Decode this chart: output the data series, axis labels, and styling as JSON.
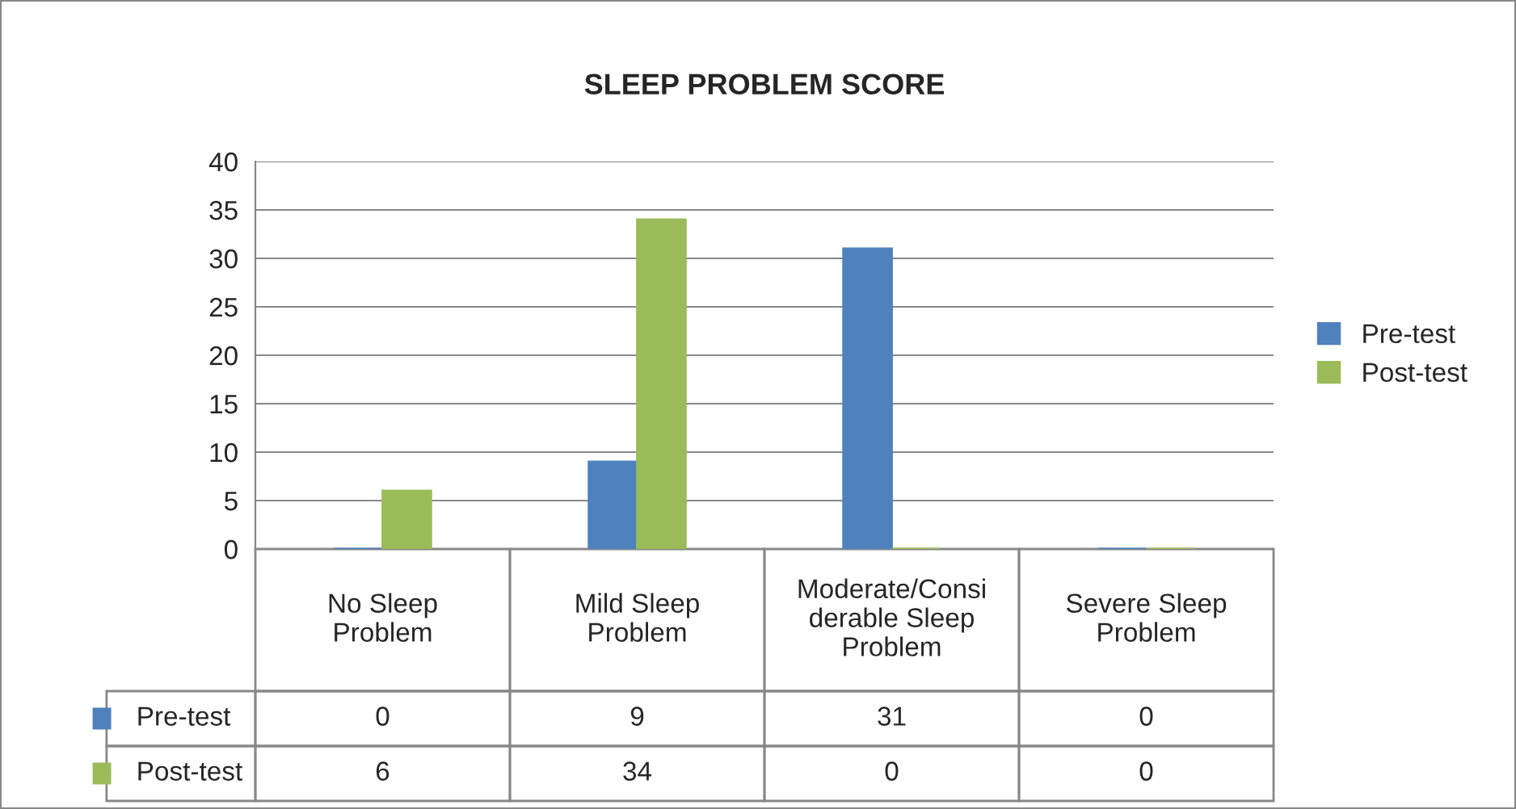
{
  "chart_data": {
    "type": "bar",
    "title": "SLEEP PROBLEM SCORE",
    "categories": [
      "No Sleep Problem",
      "Mild Sleep Problem",
      "Moderate/Considerable Sleep Problem",
      "Severe Sleep Problem"
    ],
    "series": [
      {
        "name": "Pre-test",
        "color": "#4f81bd",
        "values": [
          0,
          9,
          31,
          0
        ]
      },
      {
        "name": "Post-test",
        "color": "#9bbb59",
        "values": [
          6,
          34,
          0,
          0
        ]
      }
    ],
    "ylim": [
      0,
      40
    ],
    "yticks": [
      0,
      5,
      10,
      15,
      20,
      25,
      30,
      35,
      40
    ],
    "grid": "y",
    "legend": "right",
    "data_labels": true
  }
}
